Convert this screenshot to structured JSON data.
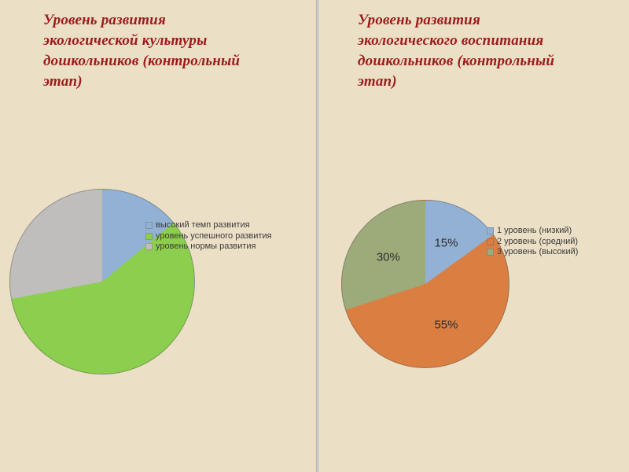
{
  "slide": {
    "background_color": "#EBDFC6",
    "divider_color": "#A9ADB2",
    "title_color": "#9E1A1A"
  },
  "left_panel": {
    "title": "Уровень развития экологической культуры дошкольников (контрольный этап)",
    "title_lines": [
      "Уровень развития",
      "экологической культуры",
      "дошкольников (контрольный",
      "этап)"
    ]
  },
  "right_panel": {
    "title": "Уровень развития экологического воспитания дошкольников (контрольный этап)",
    "title_lines": [
      "Уровень развития",
      "экологического воспитания",
      "дошкольников (контрольный",
      "этап)"
    ]
  },
  "chart_data": [
    {
      "type": "pie",
      "title": "Уровень развития экологической культуры дошкольников (контрольный этап)",
      "start_angle_deg": 0,
      "direction": "clockwise",
      "data_labels_shown": false,
      "legend_position": "overlapping-right",
      "series": [
        {
          "label": "высокий темп развития",
          "value": 14,
          "color": "#92B1D5"
        },
        {
          "label": "уровень успешного развития",
          "value": 58,
          "color": "#8CCE4D"
        },
        {
          "label": "уровень нормы развития",
          "value": 28,
          "color": "#C0BDBD"
        }
      ],
      "note": "values estimated from slice angles; no data labels visible"
    },
    {
      "type": "pie",
      "title": "Уровень развития экологического воспитания дошкольников (контрольный этап)",
      "start_angle_deg": 0,
      "direction": "clockwise",
      "data_labels_shown": true,
      "legend_position": "right",
      "series": [
        {
          "label": "1 уровень (низкий)",
          "value": 15,
          "color": "#92B1D5",
          "data_label": "15%"
        },
        {
          "label": "2 уровень (средний)",
          "value": 55,
          "color": "#DA7E41",
          "data_label": "55%"
        },
        {
          "label": "3 уровень (высокий)",
          "value": 30,
          "color": "#9DAA79",
          "data_label": "30%"
        }
      ]
    }
  ]
}
